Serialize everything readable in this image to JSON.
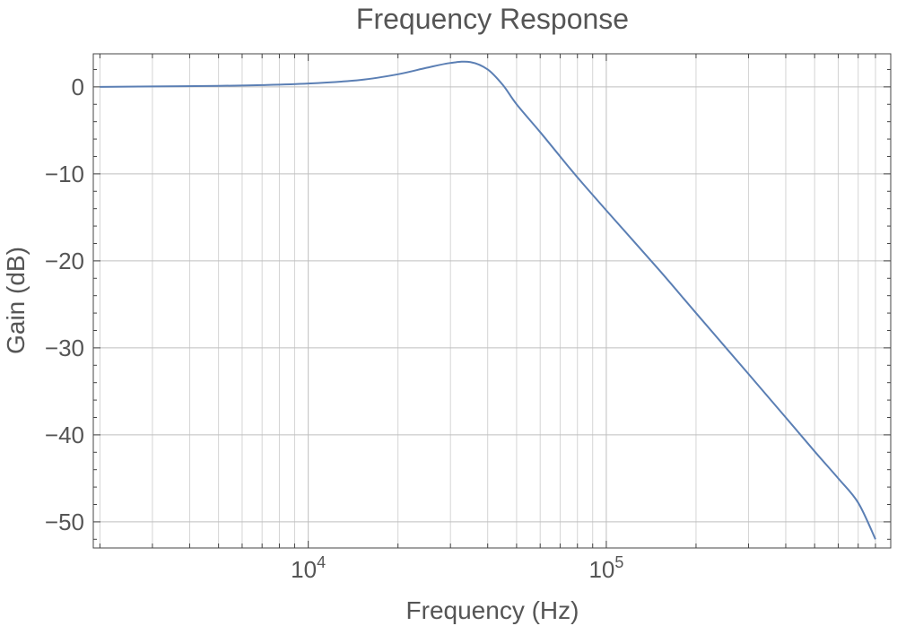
{
  "chart_data": {
    "type": "line",
    "title": "Frequency Response",
    "xlabel": "Frequency (Hz)",
    "ylabel": "Gain (dB)",
    "x_scale": "log",
    "xlim": [
      1900,
      900000
    ],
    "ylim": [
      -53,
      3.8
    ],
    "grid": true,
    "x_ticks": [
      {
        "value": 10000,
        "base": "10",
        "exp": "4"
      },
      {
        "value": 100000,
        "base": "10",
        "exp": "5"
      }
    ],
    "y_ticks": [
      {
        "value": 0,
        "label": "0"
      },
      {
        "value": -10,
        "label": "−10"
      },
      {
        "value": -20,
        "label": "−20"
      },
      {
        "value": -30,
        "label": "−30"
      },
      {
        "value": -40,
        "label": "−40"
      },
      {
        "value": -50,
        "label": "−50"
      }
    ],
    "color": "#5b7fb4",
    "series": [
      {
        "x": [
          2000,
          3000,
          5000,
          7000,
          10000,
          15000,
          20000,
          25000,
          30000,
          35000,
          40000,
          45000,
          50000,
          60000,
          70000,
          80000,
          100000,
          150000,
          200000,
          300000,
          400000,
          500000,
          600000,
          700000,
          800000
        ],
        "y": [
          0.0,
          0.05,
          0.12,
          0.2,
          0.38,
          0.8,
          1.45,
          2.2,
          2.75,
          2.85,
          2.0,
          0.2,
          -2.0,
          -5.2,
          -8.0,
          -10.4,
          -14.2,
          -21.0,
          -26.0,
          -33.0,
          -38.0,
          -41.9,
          -45.0,
          -47.8,
          -52.0
        ]
      }
    ]
  }
}
